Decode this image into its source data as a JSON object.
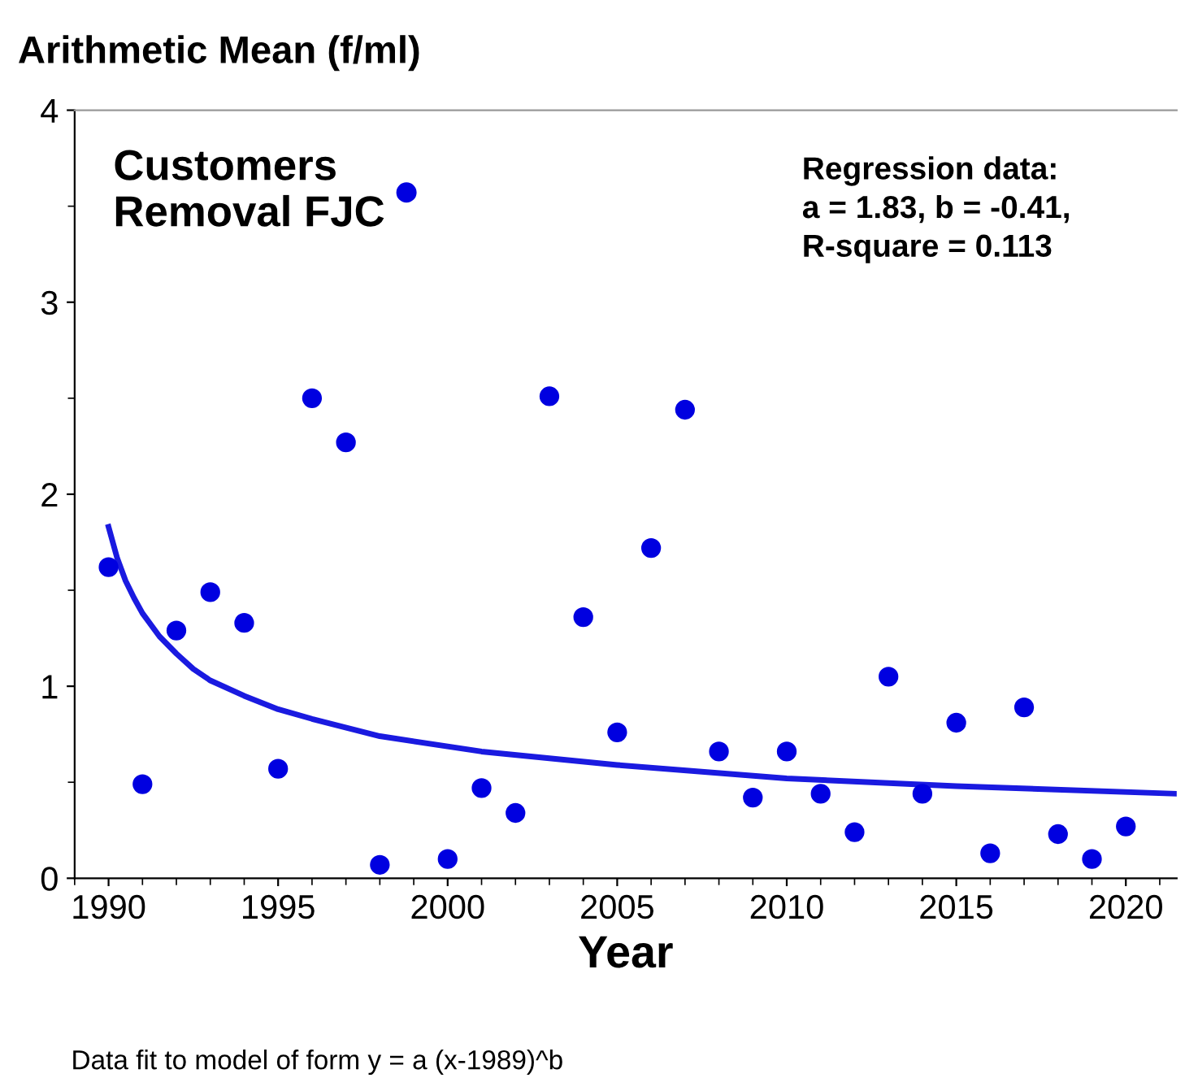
{
  "chart_data": {
    "type": "scatter",
    "ylabel": "Arithmetic Mean (f/ml)",
    "xlabel": "Year",
    "annotations": [
      "Regression data:\na = 1.83, b = -0.41,\nR-square = 0.113",
      "Data fit to model of form y = a (x-1989)^b"
    ],
    "x": [
      1990,
      1991,
      1992,
      1993,
      1994,
      1995,
      1996,
      1997,
      1998,
      2000,
      2001,
      2002,
      2003,
      2004,
      2005,
      2006,
      2007,
      2008,
      2009,
      2010,
      2011,
      2012,
      2013,
      2014,
      2015,
      2016,
      2017,
      2018,
      2019,
      2020
    ],
    "series": [
      {
        "name": "Customers\nRemoval FJC",
        "color": "#0000e0",
        "marker": "circle",
        "values": [
          1.62,
          0.49,
          1.29,
          1.49,
          1.33,
          0.57,
          2.5,
          2.27,
          0.07,
          0.1,
          0.47,
          0.34,
          2.51,
          1.36,
          0.76,
          1.72,
          2.44,
          0.66,
          0.42,
          0.66,
          0.44,
          0.24,
          1.05,
          0.44,
          0.81,
          0.13,
          0.89,
          0.23,
          0.1,
          0.27
        ]
      },
      {
        "type": "line",
        "color": "#1a1ae0",
        "marker": "none",
        "x": [
          1990,
          1990.25,
          1990.5,
          1990.75,
          1991,
          1991.5,
          1992,
          1992.5,
          1993,
          1994,
          1995,
          1996,
          1998,
          2001,
          2005,
          2010,
          2015,
          2021.5
        ],
        "values": [
          1.83,
          1.67,
          1.55,
          1.46,
          1.38,
          1.26,
          1.17,
          1.09,
          1.03,
          0.95,
          0.88,
          0.83,
          0.74,
          0.66,
          0.59,
          0.52,
          0.48,
          0.44
        ]
      }
    ],
    "xlim": [
      1989,
      2021.5
    ],
    "xticks": [
      1990,
      1995,
      2000,
      2005,
      2010,
      2015,
      2020
    ],
    "ylim": [
      0,
      4
    ],
    "yticks": [
      0,
      1,
      2,
      3,
      4
    ],
    "legend": "top left",
    "grid": false
  }
}
